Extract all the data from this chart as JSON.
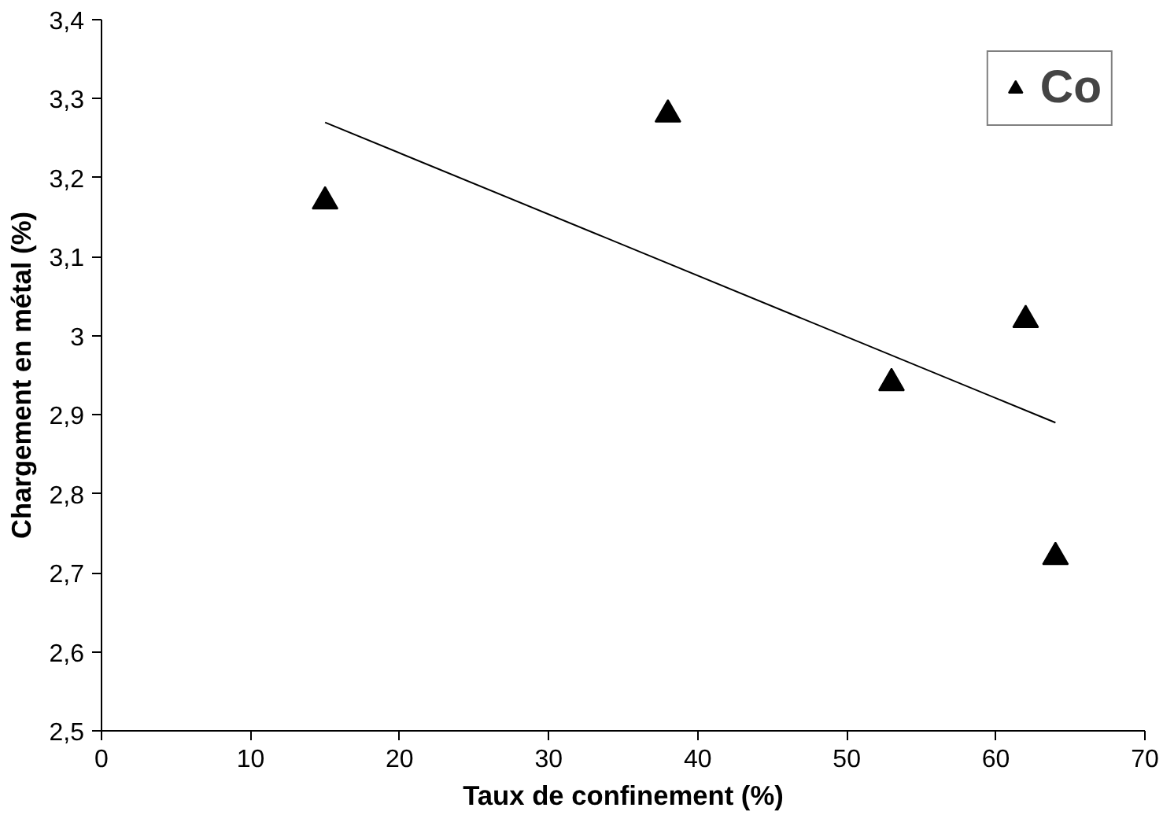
{
  "chart_data": {
    "type": "scatter",
    "xlabel": "Taux de confinement (%)",
    "ylabel": "Chargement en métal (%)",
    "series": [
      {
        "name": "Co",
        "color": "#000000",
        "marker": "triangle",
        "x": [
          15,
          38,
          53,
          62,
          64
        ],
        "values": [
          3.17,
          3.28,
          2.94,
          3.02,
          2.72
        ]
      },
      {
        "type": "line",
        "color": "#000000",
        "x": [
          15,
          64
        ],
        "values": [
          3.27,
          2.89
        ]
      }
    ],
    "xlim": [
      0,
      70
    ],
    "xticks": [
      0,
      10,
      20,
      30,
      40,
      50,
      60,
      70
    ],
    "ylim": [
      2.5,
      3.4
    ],
    "yticks": [
      {
        "value": 2.5,
        "label": "2,5"
      },
      {
        "value": 2.6,
        "label": "2,6"
      },
      {
        "value": 2.7,
        "label": "2,7"
      },
      {
        "value": 2.8,
        "label": "2,8"
      },
      {
        "value": 2.9,
        "label": "2,9"
      },
      {
        "value": 3,
        "label": "3"
      },
      {
        "value": 3.1,
        "label": "3,1"
      },
      {
        "value": 3.2,
        "label": "3,2"
      },
      {
        "value": 3.3,
        "label": "3,3"
      },
      {
        "value": 3.4,
        "label": "3,4"
      }
    ],
    "grid": false,
    "legend": "top right"
  }
}
